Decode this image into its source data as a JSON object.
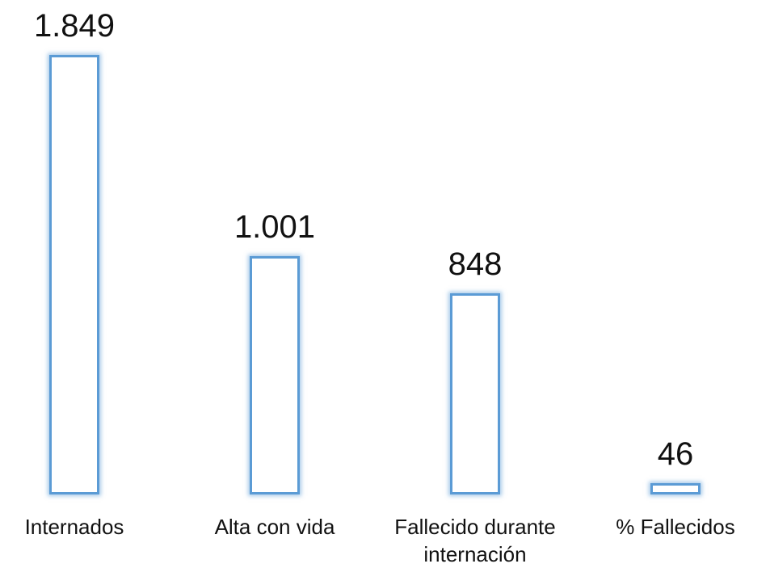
{
  "chart_data": {
    "type": "bar",
    "categories": [
      "Internados",
      "Alta con vida",
      "Fallecido durante internación",
      "% Fallecidos"
    ],
    "values": [
      1849,
      1001,
      848,
      46
    ],
    "value_labels": [
      "1.849",
      "1.001",
      "848",
      "46"
    ],
    "color": "#5b9bd5"
  }
}
